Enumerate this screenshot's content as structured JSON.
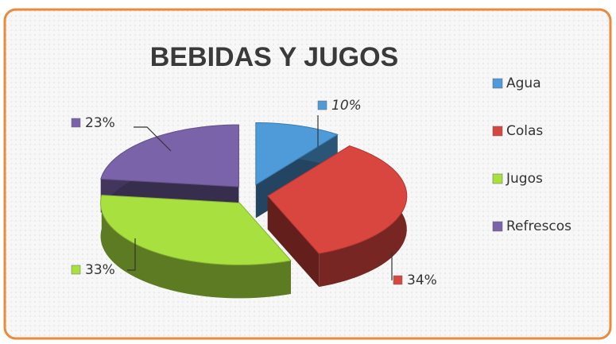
{
  "chart_data": {
    "type": "pie",
    "title": "BEBIDAS Y JUGOS",
    "categories": [
      "Agua",
      "Colas",
      "Jugos",
      "Refrescos"
    ],
    "values": [
      10,
      34,
      33,
      23
    ],
    "value_labels": [
      "10%",
      "34%",
      "33%",
      "23%"
    ],
    "colors": [
      "#4f9ad8",
      "#d9453f",
      "#a8e040",
      "#7a63a8"
    ],
    "legend": "right"
  }
}
